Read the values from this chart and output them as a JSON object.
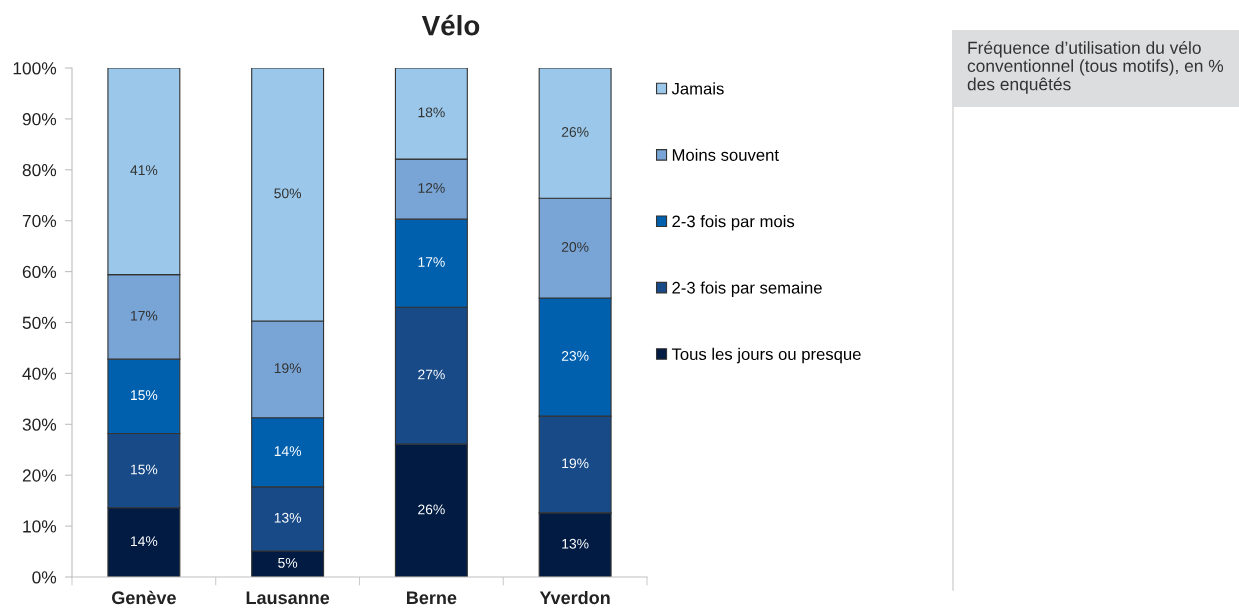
{
  "chart_data": {
    "type": "bar",
    "stacked": true,
    "title": "Vélo",
    "categories": [
      "Genève",
      "Lausanne",
      "Berne",
      "Yverdon"
    ],
    "ylim": [
      0,
      100
    ],
    "yticks": [
      {
        "value": 0,
        "label": "0%"
      },
      {
        "value": 10,
        "label": "10%"
      },
      {
        "value": 20,
        "label": "20%"
      },
      {
        "value": 30,
        "label": "30%"
      },
      {
        "value": 40,
        "label": "40%"
      },
      {
        "value": 50,
        "label": "50%"
      },
      {
        "value": 60,
        "label": "60%"
      },
      {
        "value": 70,
        "label": "70%"
      },
      {
        "value": 80,
        "label": "80%"
      },
      {
        "value": 90,
        "label": "90%"
      },
      {
        "value": 100,
        "label": "100%"
      }
    ],
    "legend": "right",
    "annotations": [
      "Fréquence d’utilisation du vélo conventionnel (tous motifs), en % des enquêtés"
    ],
    "series": [
      {
        "name": "Tous les jours ou presque",
        "color": "#021b43",
        "values": [
          13.6,
          5.1,
          26.1,
          12.6
        ],
        "value_labels": [
          "14%",
          "5%",
          "26%",
          "13%"
        ]
      },
      {
        "name": "2-3 fois par semaine",
        "color": "#174a87",
        "values": [
          14.6,
          12.6,
          26.9,
          19.0
        ],
        "value_labels": [
          "15%",
          "13%",
          "27%",
          "19%"
        ]
      },
      {
        "name": "2-3 fois par mois",
        "color": "#0060ae",
        "values": [
          14.6,
          13.6,
          17.3,
          23.2
        ],
        "value_labels": [
          "15%",
          "14%",
          "17%",
          "23%"
        ]
      },
      {
        "name": "Moins souvent",
        "color": "#79a5d6",
        "values": [
          16.6,
          19.0,
          11.8,
          19.6
        ],
        "value_labels": [
          "17%",
          "19%",
          "12%",
          "20%"
        ]
      },
      {
        "name": "Jamais",
        "color": "#9bc8ea",
        "values": [
          40.6,
          49.7,
          17.9,
          25.6
        ],
        "value_labels": [
          "41%",
          "50%",
          "18%",
          "26%"
        ]
      }
    ]
  }
}
